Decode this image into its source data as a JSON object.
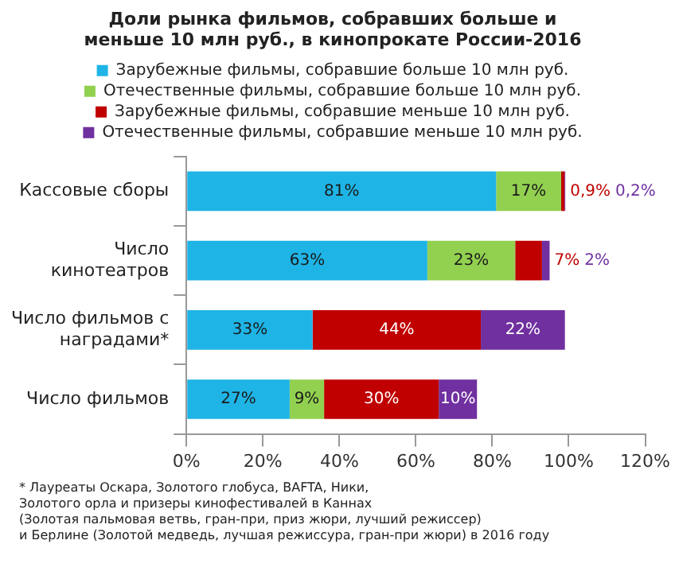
{
  "chart_data": {
    "type": "bar",
    "orientation": "horizontal",
    "stacked": true,
    "title": "Доли рынка фильмов, собравших больше и меньше 10 млн руб., в кинопрокате России-2016",
    "categories": [
      "Кассовые сборы",
      "Число кинотеатров",
      "Число фильмов с наградами*",
      "Число фильмов"
    ],
    "series": [
      {
        "name": "Зарубежные фильмы, собравшие больше 10 млн руб.",
        "color": "#1fb4e6",
        "values": [
          81,
          63,
          33,
          27
        ],
        "value_labels": [
          "81%",
          "63%",
          "33%",
          "27%"
        ]
      },
      {
        "name": "Отечественные фильмы, собравшие больше 10 млн руб.",
        "color": "#92d050",
        "values": [
          17,
          23,
          0,
          9
        ],
        "value_labels": [
          "17%",
          "23%",
          null,
          "9%"
        ]
      },
      {
        "name": "Зарубежные фильмы, собравшие меньше 10 млн руб.",
        "color": "#c00000",
        "values": [
          0.9,
          7,
          44,
          30
        ],
        "value_labels": [
          "0,9%",
          "7%",
          "44%",
          "30%"
        ]
      },
      {
        "name": "Отечественные фильмы, собравшие меньше 10 млн руб.",
        "color": "#7030a0",
        "values": [
          0.2,
          2,
          22,
          10
        ],
        "value_labels": [
          "0,2%",
          "2%",
          "22%",
          "10%"
        ]
      }
    ],
    "xlim": [
      0,
      120
    ],
    "xticks": [
      {
        "value": 0,
        "label": "0%"
      },
      {
        "value": 20,
        "label": "20%"
      },
      {
        "value": 40,
        "label": "40%"
      },
      {
        "value": 60,
        "label": "60%"
      },
      {
        "value": 80,
        "label": "80%"
      },
      {
        "value": 100,
        "label": "100%"
      },
      {
        "value": 120,
        "label": "120%"
      }
    ],
    "grid": false,
    "legend": "top",
    "annotations": [
      "* Лауреаты Оскара, Золотого глобуса, BAFTA, Ники,",
      "Золотого орла и призеры кинофестивалей в Каннах",
      "(Золотая пальмовая ветвь, гран-при, приз жюри, лучший режиссер)",
      "и Берлине (Золотой медведь, лучшая режиссура, гран-при жюри) в 2016 году"
    ]
  }
}
